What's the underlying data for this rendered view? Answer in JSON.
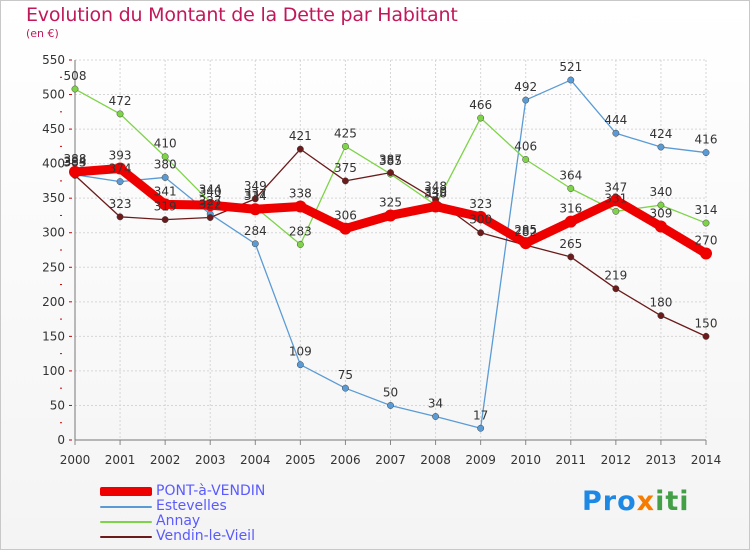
{
  "header": {
    "title": "Evolution du Montant de la Dette par Habitant",
    "subtitle": "(en €)"
  },
  "logo": {
    "part1": "Pro",
    "part2": "x",
    "part3": "iti"
  },
  "chart_data": {
    "type": "line",
    "title": "Evolution du Montant de la Dette par Habitant",
    "subtitle": "(en €)",
    "xlabel": "",
    "ylabel": "",
    "x": [
      "2000",
      "2001",
      "2002",
      "2003",
      "2004",
      "2005",
      "2006",
      "2007",
      "2008",
      "2009",
      "2010",
      "2011",
      "2012",
      "2013",
      "2014"
    ],
    "ylim": [
      0,
      550
    ],
    "yticks": [
      0,
      50,
      100,
      150,
      200,
      250,
      300,
      350,
      400,
      450,
      500,
      550
    ],
    "grid": true,
    "legend_position": "bottom-left",
    "series": [
      {
        "name": "Estevelles",
        "color": "#5b9bd5",
        "values": [
          384,
          374,
          380,
          327,
          284,
          109,
          75,
          50,
          34,
          17,
          492,
          521,
          444,
          424,
          416
        ],
        "labels": [
          "384",
          "374",
          "380",
          "327",
          "284",
          "109",
          "75",
          "50",
          "34",
          "17",
          "492",
          "521",
          "444",
          "424",
          "416"
        ]
      },
      {
        "name": "Annay",
        "color": "#7ed348",
        "values": [
          508,
          472,
          410,
          344,
          337,
          283,
          425,
          385,
          340,
          466,
          406,
          364,
          331,
          340,
          314
        ],
        "labels": [
          "508",
          "472",
          "410",
          "344",
          "337",
          "283",
          "425",
          "385",
          "340",
          "466",
          "406",
          "364",
          "331",
          "340",
          "314"
        ]
      },
      {
        "name": "Vendin-le-Vieil",
        "color": "#6b1b1b",
        "values": [
          383,
          323,
          319,
          322,
          349,
          421,
          375,
          387,
          348,
          300,
          282,
          265,
          219,
          180,
          150
        ],
        "labels": [
          "383",
          "323",
          "319",
          "322",
          "349",
          "421",
          "375",
          "387",
          "348",
          "300",
          "282",
          "265",
          "219",
          "180",
          "150"
        ]
      },
      {
        "name": "PONT-à-VENDIN",
        "color": "#ee0000",
        "values": [
          388,
          393,
          341,
          340,
          334,
          338,
          306,
          325,
          338,
          323,
          285,
          316,
          347,
          309,
          270
        ],
        "labels": [
          "388",
          "393",
          "341",
          "340",
          "334",
          "338",
          "306",
          "325",
          "338",
          "323",
          "285",
          "316",
          "347",
          "309",
          "270"
        ]
      }
    ],
    "legend": [
      "PONT-à-VENDIN",
      "Estevelles",
      "Annay",
      "Vendin-le-Vieil"
    ]
  }
}
